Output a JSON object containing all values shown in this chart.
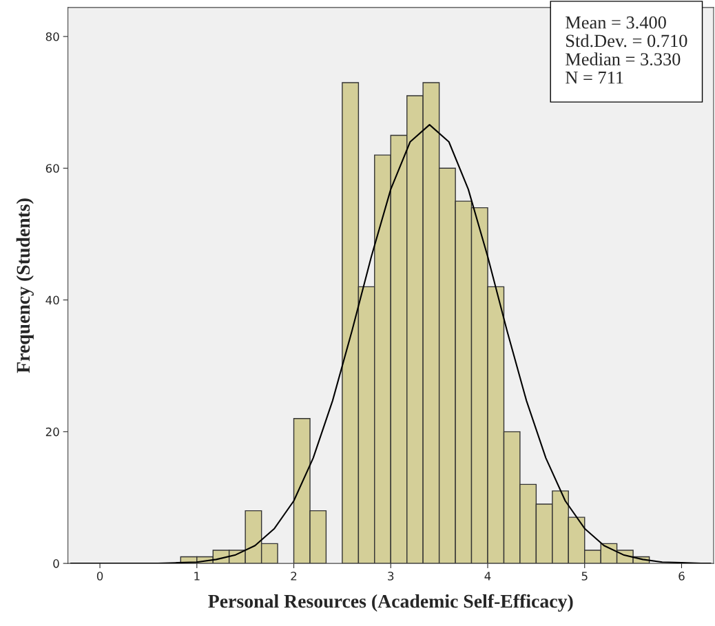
{
  "chart_data": {
    "type": "histogram",
    "xlabel": "Personal Resources (Academic Self-Efficacy)",
    "ylabel": "Frequency (Students)",
    "annotations": [
      "Mean = 3.400",
      "Std.Dev. = 0.710",
      "Median = 3.330",
      "N = 711"
    ],
    "bins": [
      0.833,
      1.0,
      1.167,
      1.333,
      1.5,
      1.667,
      1.833,
      2.0,
      2.167,
      2.333,
      2.5,
      2.667,
      2.833,
      3.0,
      3.167,
      3.333,
      3.5,
      3.667,
      3.833,
      4.0,
      4.167,
      4.333,
      4.5,
      4.667,
      4.833,
      5.0,
      5.167,
      5.333,
      5.5,
      5.667
    ],
    "series": [
      {
        "type": "histogram",
        "color": "#d4cf98",
        "values": [
          1,
          1,
          2,
          2,
          8,
          3,
          0,
          22,
          8,
          0,
          73,
          42,
          62,
          65,
          71,
          73,
          60,
          55,
          54,
          42,
          20,
          12,
          9,
          11,
          7,
          2,
          3,
          2,
          1
        ]
      },
      {
        "type": "line",
        "color": "#000000",
        "x": [
          -0.3,
          0.4,
          0.6,
          0.8,
          1.0,
          1.2,
          1.4,
          1.6,
          1.8,
          2.0,
          2.2,
          2.4,
          2.6,
          2.8,
          3.0,
          3.2,
          3.4,
          3.6,
          3.8,
          4.0,
          4.2,
          4.4,
          4.6,
          4.8,
          5.0,
          5.2,
          5.4,
          5.6,
          5.8,
          6.0,
          6.2,
          6.3
        ],
        "values": [
          0,
          0,
          0.0,
          0.1,
          0.2,
          0.6,
          1.3,
          2.7,
          5.3,
          9.5,
          16.0,
          24.7,
          35.3,
          46.6,
          56.8,
          64.0,
          66.6,
          64.0,
          56.8,
          46.6,
          35.3,
          24.7,
          16.0,
          9.5,
          5.3,
          2.7,
          1.3,
          0.6,
          0.2,
          0.1,
          0.0,
          0
        ]
      }
    ],
    "xlim": [
      -0.33,
      6.33
    ],
    "ylim": [
      0,
      84.4
    ],
    "xticks": [
      0,
      1,
      2,
      3,
      4,
      5,
      6
    ],
    "yticks": [
      0,
      20,
      40,
      60,
      80
    ],
    "grid": false,
    "legend": false
  }
}
